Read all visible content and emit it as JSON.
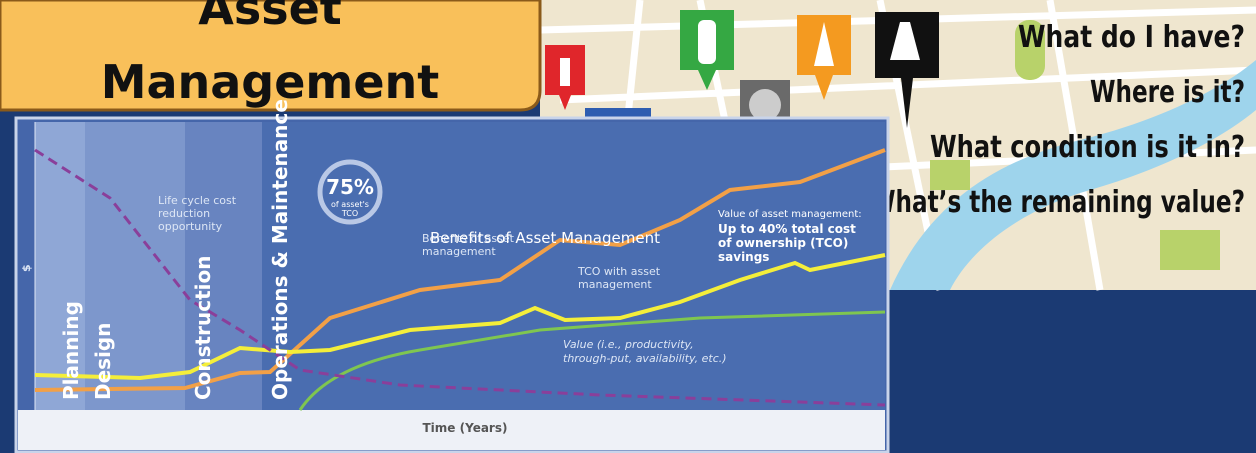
{
  "slide": {
    "title": [
      "Asset",
      "Management"
    ],
    "questions": [
      "What do I have?",
      "Where is it?",
      "What condition is it in?",
      "What’s the remaining value?"
    ],
    "overlay": "Benefits of Asset Management",
    "diagram": {
      "stages": [
        "Planning",
        "Design",
        "Construction",
        "Operations & Maintenance"
      ],
      "badge": {
        "value": "75%",
        "caption": [
          "of asset's",
          "TCO"
        ]
      },
      "lifecycle": [
        "Life cycle cost",
        "reduction",
        "opportunity"
      ],
      "benefits": [
        "Benefits of asset",
        "management"
      ],
      "tco": [
        "TCO with asset",
        "management"
      ],
      "value": [
        "Value (i.e., productivity,",
        "through-put, availability, etc.)"
      ],
      "callout": [
        "Value of asset management:",
        "Up to 40% total cost",
        "of ownership (TCO)",
        "savings"
      ],
      "y_label": "$",
      "x_label": "Time (Years)"
    }
  }
}
